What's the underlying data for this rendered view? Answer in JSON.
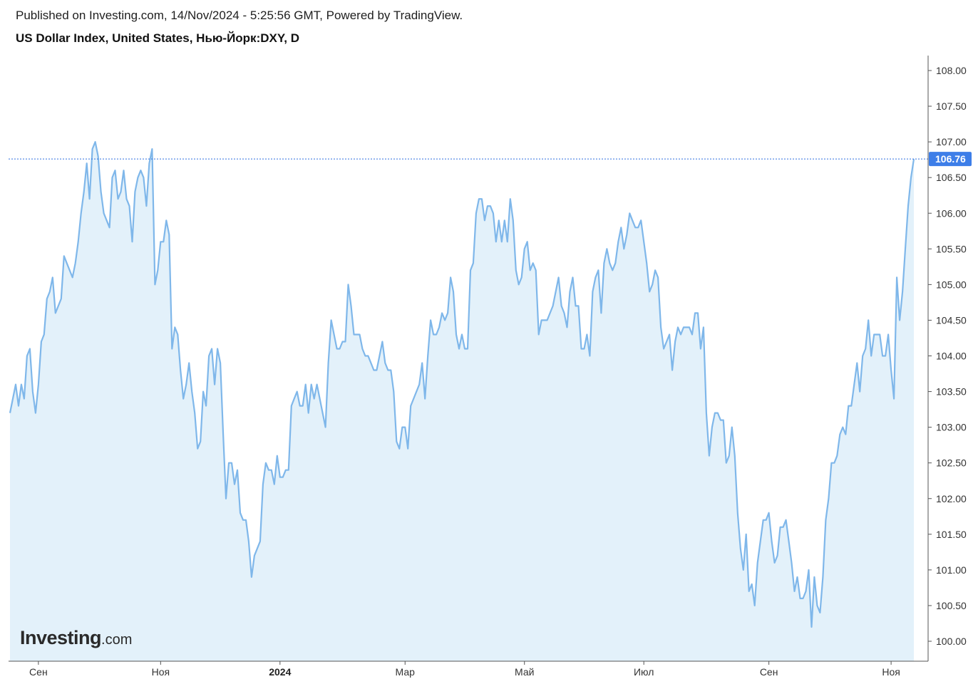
{
  "header": {
    "published": "Published on Investing.com, 14/Nov/2024 - 5:25:56 GMT, Powered by TradingView.",
    "title": "US Dollar Index, United States, Нью-Йорк:DXY, D"
  },
  "logo": {
    "main": "Investing",
    "suffix": ".com"
  },
  "colors": {
    "line": "#7fb7ea",
    "area": "#e3f1fa",
    "price_tag": "#3d7ee8",
    "dotted": "#2f6fe0",
    "axis": "#333333"
  },
  "chart_data": {
    "type": "area",
    "title": "US Dollar Index, United States, Нью-Йорк:DXY, D",
    "ylim": [
      99.8,
      108.2
    ],
    "y_ticks": [
      "108.00",
      "107.50",
      "107.00",
      "106.50",
      "106.00",
      "105.50",
      "105.00",
      "104.50",
      "104.00",
      "103.50",
      "103.00",
      "102.50",
      "102.00",
      "101.50",
      "101.00",
      "100.50",
      "100.00"
    ],
    "x_ticks": [
      {
        "label": "Сен",
        "bold": false,
        "index": 10
      },
      {
        "label": "Ноя",
        "bold": false,
        "index": 53
      },
      {
        "label": "2024",
        "bold": true,
        "index": 95
      },
      {
        "label": "Мар",
        "bold": false,
        "index": 139
      },
      {
        "label": "Май",
        "bold": false,
        "index": 181
      },
      {
        "label": "Июл",
        "bold": false,
        "index": 223
      },
      {
        "label": "Сен",
        "bold": false,
        "index": 267
      },
      {
        "label": "Ноя",
        "bold": false,
        "index": 310
      }
    ],
    "last_price": "106.76",
    "last_value": 106.76,
    "values": [
      103.2,
      103.4,
      103.6,
      103.3,
      103.6,
      103.4,
      104.0,
      104.1,
      103.5,
      103.2,
      103.6,
      104.2,
      104.3,
      104.8,
      104.9,
      105.1,
      104.6,
      104.7,
      104.8,
      105.4,
      105.3,
      105.2,
      105.1,
      105.3,
      105.6,
      106.0,
      106.3,
      106.7,
      106.2,
      106.9,
      107.0,
      106.8,
      106.3,
      106.0,
      105.9,
      105.8,
      106.5,
      106.6,
      106.2,
      106.3,
      106.6,
      106.2,
      106.1,
      105.6,
      106.3,
      106.5,
      106.6,
      106.5,
      106.1,
      106.7,
      106.9,
      105.0,
      105.2,
      105.6,
      105.6,
      105.9,
      105.7,
      104.1,
      104.4,
      104.3,
      103.8,
      103.4,
      103.6,
      103.9,
      103.5,
      103.2,
      102.7,
      102.8,
      103.5,
      103.3,
      104.0,
      104.1,
      103.6,
      104.1,
      103.9,
      102.9,
      102.0,
      102.5,
      102.5,
      102.2,
      102.4,
      101.8,
      101.7,
      101.7,
      101.4,
      100.9,
      101.2,
      101.3,
      101.4,
      102.2,
      102.5,
      102.4,
      102.4,
      102.2,
      102.6,
      102.3,
      102.3,
      102.4,
      102.4,
      103.3,
      103.4,
      103.5,
      103.3,
      103.3,
      103.6,
      103.2,
      103.6,
      103.4,
      103.6,
      103.4,
      103.2,
      103.0,
      103.9,
      104.5,
      104.3,
      104.1,
      104.1,
      104.2,
      104.2,
      105.0,
      104.7,
      104.3,
      104.3,
      104.3,
      104.1,
      104.0,
      104.0,
      103.9,
      103.8,
      103.8,
      104.0,
      104.2,
      103.9,
      103.8,
      103.8,
      103.5,
      102.8,
      102.7,
      103.0,
      103.0,
      102.7,
      103.3,
      103.4,
      103.5,
      103.6,
      103.9,
      103.4,
      104.0,
      104.5,
      104.3,
      104.3,
      104.4,
      104.6,
      104.5,
      104.6,
      105.1,
      104.9,
      104.3,
      104.1,
      104.3,
      104.1,
      104.1,
      105.2,
      105.3,
      106.0,
      106.2,
      106.2,
      105.9,
      106.1,
      106.1,
      106.0,
      105.6,
      105.9,
      105.6,
      105.9,
      105.6,
      106.2,
      105.9,
      105.2,
      105.0,
      105.1,
      105.5,
      105.6,
      105.2,
      105.3,
      105.2,
      104.3,
      104.5,
      104.5,
      104.5,
      104.6,
      104.7,
      104.9,
      105.1,
      104.7,
      104.6,
      104.4,
      104.9,
      105.1,
      104.7,
      104.7,
      104.1,
      104.1,
      104.3,
      104.0,
      104.9,
      105.1,
      105.2,
      104.6,
      105.3,
      105.5,
      105.3,
      105.2,
      105.3,
      105.6,
      105.8,
      105.5,
      105.7,
      106.0,
      105.9,
      105.8,
      105.8,
      105.9,
      105.6,
      105.3,
      104.9,
      105.0,
      105.2,
      105.1,
      104.4,
      104.1,
      104.2,
      104.3,
      103.8,
      104.2,
      104.4,
      104.3,
      104.4,
      104.4,
      104.4,
      104.3,
      104.6,
      104.6,
      104.1,
      104.4,
      103.2,
      102.6,
      103.0,
      103.2,
      103.2,
      103.1,
      103.1,
      102.5,
      102.6,
      103.0,
      102.6,
      101.8,
      101.3,
      101.0,
      101.5,
      100.7,
      100.8,
      100.5,
      101.1,
      101.4,
      101.7,
      101.7,
      101.8,
      101.4,
      101.1,
      101.2,
      101.6,
      101.6,
      101.7,
      101.4,
      101.1,
      100.7,
      100.9,
      100.6,
      100.6,
      100.7,
      101.0,
      100.2,
      100.9,
      100.5,
      100.4,
      100.9,
      101.7,
      102.0,
      102.5,
      102.5,
      102.6,
      102.9,
      103.0,
      102.9,
      103.3,
      103.3,
      103.6,
      103.9,
      103.5,
      104.0,
      104.1,
      104.5,
      104.0,
      104.3,
      104.3,
      104.3,
      104.0,
      104.0,
      104.3,
      103.8,
      103.4,
      105.1,
      104.5,
      104.9,
      105.5,
      106.1,
      106.5,
      106.76
    ]
  }
}
